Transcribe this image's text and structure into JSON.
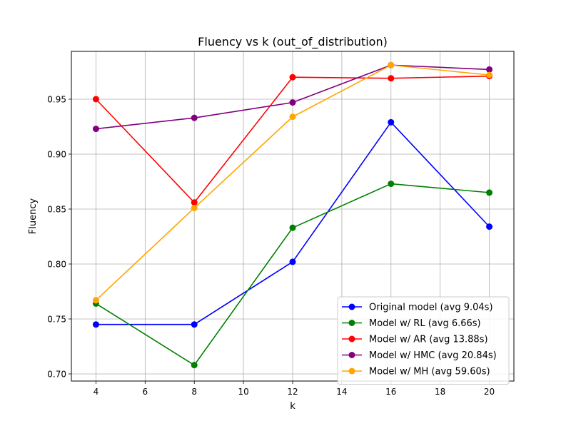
{
  "chart_data": {
    "type": "line",
    "title": "Fluency vs k (out_of_distribution)",
    "xlabel": "k",
    "ylabel": "Fluency",
    "x": [
      4,
      8,
      12,
      16,
      20
    ],
    "xlim": [
      3.0,
      21.0
    ],
    "ylim": [
      0.6935,
      0.9935
    ],
    "xticks": [
      4,
      6,
      8,
      10,
      12,
      14,
      16,
      18,
      20
    ],
    "yticks": [
      0.7,
      0.75,
      0.8,
      0.85,
      0.9,
      0.95
    ],
    "xtick_labels": [
      "4",
      "6",
      "8",
      "10",
      "12",
      "14",
      "16",
      "18",
      "20"
    ],
    "ytick_labels": [
      "0.70",
      "0.75",
      "0.80",
      "0.85",
      "0.90",
      "0.95"
    ],
    "grid": true,
    "legend_position": "lower-right",
    "series": [
      {
        "name": "Original model (avg 9.04s)",
        "color": "#0000ff",
        "values": [
          0.745,
          0.745,
          0.802,
          0.929,
          0.834
        ]
      },
      {
        "name": "Model w/ RL (avg 6.66s)",
        "color": "#008000",
        "values": [
          0.764,
          0.708,
          0.833,
          0.873,
          0.865
        ]
      },
      {
        "name": "Model w/ AR (avg 13.88s)",
        "color": "#ff0000",
        "values": [
          0.95,
          0.856,
          0.97,
          0.969,
          0.971
        ]
      },
      {
        "name": "Model w/ HMC (avg 20.84s)",
        "color": "#800080",
        "values": [
          0.923,
          0.933,
          0.947,
          0.981,
          0.977
        ]
      },
      {
        "name": "Model w/ MH (avg 59.60s)",
        "color": "#ffa500",
        "values": [
          0.767,
          0.851,
          0.934,
          0.981,
          0.972
        ]
      }
    ]
  }
}
